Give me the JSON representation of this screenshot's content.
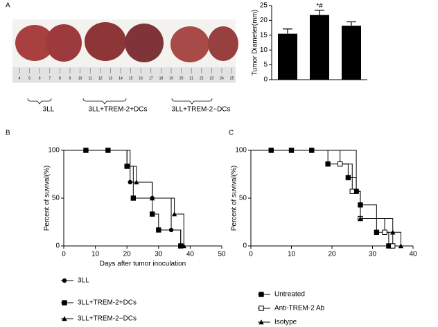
{
  "panel_labels": [
    "A",
    "B",
    "C"
  ],
  "photo": {
    "ruler_labels": [
      "4",
      "5",
      "6",
      "7",
      "8",
      "9",
      "10",
      "11",
      "12",
      "13",
      "14",
      "15",
      "16",
      "17",
      "18",
      "19",
      "20",
      "21",
      "22",
      "23",
      "24",
      "25"
    ],
    "group_labels": [
      "3LL",
      "3LL+TREM-2+DCs",
      "3LL+TREM-2−DCs"
    ]
  },
  "chart_data": [
    {
      "type": "bar",
      "y_label": "Tumor Diameter(mm)",
      "categories": [
        null,
        null,
        null
      ],
      "values": [
        15.5,
        21.8,
        18.2
      ],
      "errors": [
        1.6,
        1.6,
        1.3
      ],
      "color": "#000000",
      "annotation": "*#",
      "ylim": [
        0,
        25
      ],
      "yticks": [
        0,
        5,
        10,
        15,
        20,
        25
      ]
    },
    {
      "type": "survival",
      "x_label": "Days after tumor inoculation",
      "y_label": "Percent of suvival(%)",
      "xlim": [
        0,
        50
      ],
      "xticks": [
        0,
        10,
        20,
        30,
        40,
        50
      ],
      "ylim": [
        0,
        100
      ],
      "yticks": [
        0,
        50,
        100
      ],
      "series": [
        {
          "name": "3LL",
          "color": "#000000",
          "marker": "circle",
          "x": [
            7,
            14,
            21,
            28,
            34,
            37
          ],
          "values": [
            100,
            100,
            66.7,
            50,
            16.7,
            0
          ]
        },
        {
          "name": "3LL+TREM-2+DCs",
          "color": "#000000",
          "marker": "square",
          "x": [
            7,
            14,
            20,
            22,
            28,
            30,
            37
          ],
          "values": [
            100,
            100,
            83.3,
            50,
            33.3,
            16.7,
            0
          ]
        },
        {
          "name": "3LL+TREM-2−DCs",
          "color": "#000000",
          "marker": "triangle",
          "x": [
            20,
            23,
            28,
            35,
            38
          ],
          "values": [
            83.3,
            66.7,
            50,
            33.3,
            0
          ]
        }
      ]
    },
    {
      "type": "survival",
      "y_label": "Percent of suvival(%)",
      "xlim": [
        0,
        40
      ],
      "xticks": [
        0,
        10,
        20,
        30,
        40
      ],
      "ylim": [
        0,
        100
      ],
      "yticks": [
        0,
        50,
        100
      ],
      "series": [
        {
          "name": "Untreated",
          "color": "#000000",
          "marker": "square",
          "x": [
            5,
            10,
            15,
            19,
            24,
            26,
            27,
            31,
            34
          ],
          "values": [
            100,
            100,
            100,
            85.7,
            71.4,
            57.1,
            42.9,
            14.3,
            0
          ]
        },
        {
          "name": "Anti-TREM-2 Ab",
          "color": "#000000",
          "marker": "open-square",
          "x": [
            22,
            25,
            27,
            33,
            35
          ],
          "values": [
            85.7,
            57.1,
            28.6,
            14.3,
            0
          ]
        },
        {
          "name": "Isotype",
          "color": "#000000",
          "marker": "triangle",
          "x": [
            26,
            27,
            35,
            37
          ],
          "values": [
            57.1,
            28.6,
            14.3,
            0
          ]
        }
      ]
    }
  ]
}
